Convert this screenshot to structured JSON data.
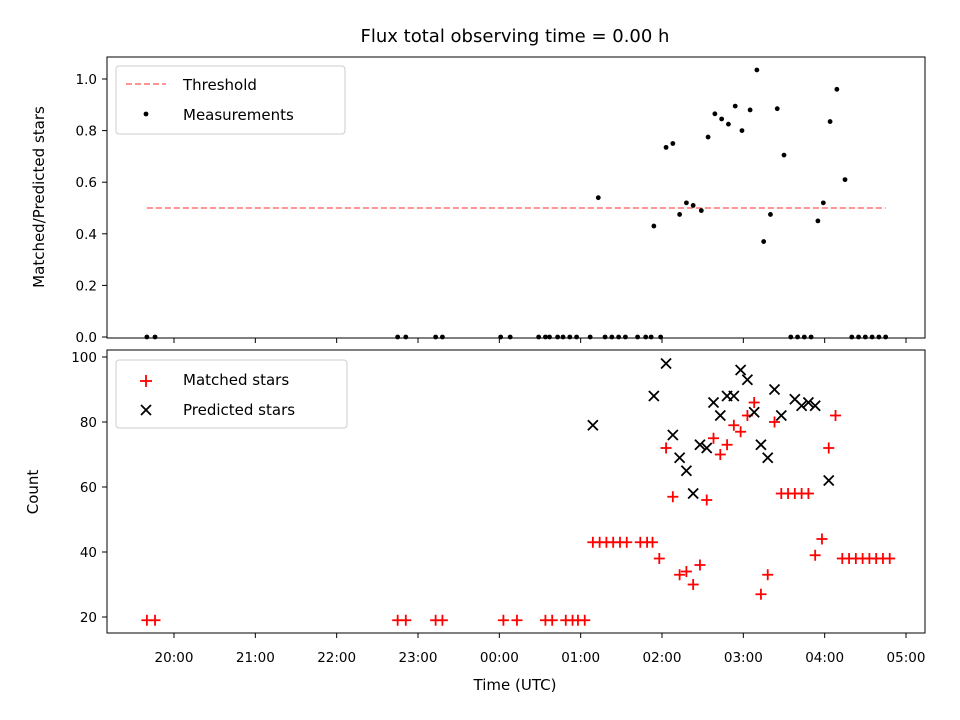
{
  "chart_data": [
    {
      "type": "scatter",
      "title": "Flux total observing time = 0.00 h",
      "xlabel": "",
      "ylabel": "Matched/Predicted stars",
      "ylim": [
        0,
        1.09
      ],
      "yticks": [
        "0.0",
        "0.2",
        "0.4",
        "0.6",
        "0.8",
        "1.0"
      ],
      "yticks_values": [
        0,
        0.2,
        0.4,
        0.6,
        0.8,
        1.0
      ],
      "legend_position": "top-left",
      "threshold": {
        "name": "Threshold",
        "value": 0.5,
        "x_start": "19:40",
        "x_end": "04:45",
        "color": "#ff7070",
        "style": "dashed"
      },
      "series": [
        {
          "name": "Measurements",
          "marker": "dot",
          "color": "#000000",
          "x": [
            "19:40",
            "19:46",
            "22:45",
            "22:51",
            "23:13",
            "23:18",
            "00:01",
            "00:08",
            "00:29",
            "00:34",
            "00:37",
            "00:43",
            "00:47",
            "00:52",
            "00:57",
            "01:07",
            "01:13",
            "01:18",
            "01:23",
            "01:28",
            "01:33",
            "01:42",
            "01:48",
            "01:52",
            "01:59",
            "01:54",
            "02:03",
            "02:08",
            "02:13",
            "02:18",
            "02:23",
            "02:29",
            "02:34",
            "02:39",
            "02:44",
            "02:49",
            "02:54",
            "02:59",
            "03:05",
            "03:10",
            "03:15",
            "03:20",
            "03:25",
            "03:30",
            "03:35",
            "03:40",
            "03:45",
            "03:50",
            "03:55",
            "03:59",
            "04:04",
            "04:09",
            "04:15",
            "04:20",
            "04:25",
            "04:30",
            "04:35",
            "04:40",
            "04:45"
          ],
          "y": [
            0,
            0,
            0,
            0,
            0,
            0,
            0,
            0,
            0,
            0,
            0,
            0,
            0,
            0,
            0,
            0,
            0.54,
            0,
            0,
            0,
            0,
            0,
            0,
            0,
            0,
            0.43,
            0.735,
            0.75,
            0.475,
            0.52,
            0.51,
            0.49,
            0.775,
            0.865,
            0.845,
            0.825,
            0.895,
            0.8,
            0.88,
            1.035,
            0.37,
            0.475,
            0.885,
            0.705,
            0,
            0,
            0,
            0,
            0.45,
            0.52,
            0.835,
            0.96,
            0.61,
            0,
            0,
            0,
            0,
            0,
            0
          ]
        }
      ]
    },
    {
      "type": "scatter",
      "xlabel": "Time (UTC)",
      "ylabel": "Count",
      "ylim": [
        15,
        101
      ],
      "yticks": [
        "20",
        "40",
        "60",
        "80",
        "100"
      ],
      "yticks_values": [
        20,
        40,
        60,
        80,
        100
      ],
      "xticks": [
        "20:00",
        "21:00",
        "22:00",
        "23:00",
        "00:00",
        "01:00",
        "02:00",
        "03:00",
        "04:00",
        "05:00"
      ],
      "legend_position": "top-left",
      "series": [
        {
          "name": "Matched stars",
          "marker": "plus",
          "color": "#ff0000",
          "x": [
            "19:40",
            "19:46",
            "22:45",
            "22:51",
            "23:13",
            "23:18",
            "00:03",
            "00:13",
            "00:34",
            "00:39",
            "00:49",
            "00:54",
            "00:58",
            "01:03",
            "01:09",
            "01:14",
            "01:19",
            "01:24",
            "01:29",
            "01:34",
            "01:44",
            "01:49",
            "01:53",
            "01:58",
            "02:03",
            "02:08",
            "02:13",
            "02:18",
            "02:23",
            "02:28",
            "02:33",
            "02:38",
            "02:43",
            "02:48",
            "02:53",
            "02:58",
            "03:03",
            "03:08",
            "03:13",
            "03:18",
            "03:23",
            "03:28",
            "03:33",
            "03:38",
            "03:43",
            "03:48",
            "03:53",
            "03:58",
            "04:03",
            "04:08",
            "04:13",
            "04:18",
            "04:23",
            "04:28",
            "04:33",
            "04:38",
            "04:43",
            "04:48"
          ],
          "y": [
            19,
            19,
            19,
            19,
            19,
            19,
            19,
            19,
            19,
            19,
            19,
            19,
            19,
            19,
            43,
            43,
            43,
            43,
            43,
            43,
            43,
            43,
            43,
            38,
            72,
            57,
            33,
            34,
            30,
            36,
            56,
            75,
            70,
            73,
            79,
            77,
            82,
            86,
            27,
            33,
            80,
            58,
            58,
            58,
            58,
            58,
            39,
            44,
            72,
            82,
            38,
            38,
            38,
            38,
            38,
            38,
            38,
            38
          ]
        },
        {
          "name": "Predicted stars",
          "marker": "x",
          "color": "#000000",
          "x": [
            "01:09",
            "01:54",
            "02:03",
            "02:08",
            "02:13",
            "02:18",
            "02:23",
            "02:28",
            "02:33",
            "02:38",
            "02:43",
            "02:48",
            "02:53",
            "02:58",
            "03:03",
            "03:08",
            "03:13",
            "03:18",
            "03:23",
            "03:28",
            "03:38",
            "03:43",
            "03:48",
            "03:53",
            "04:03"
          ],
          "y": [
            79,
            88,
            98,
            76,
            69,
            65,
            58,
            73,
            72,
            86,
            82,
            88,
            88,
            96,
            93,
            83,
            73,
            69,
            90,
            82,
            87,
            85,
            86,
            85,
            62
          ]
        }
      ]
    }
  ]
}
